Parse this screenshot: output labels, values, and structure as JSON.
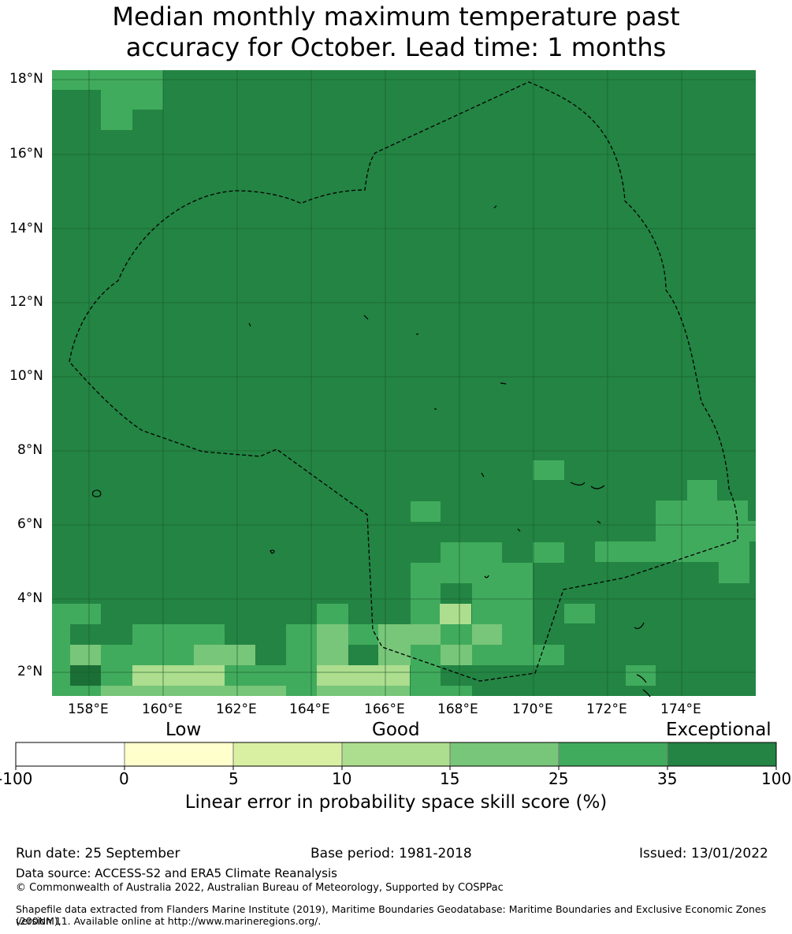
{
  "title": {
    "line1": "Median monthly maximum temperature past",
    "line2": "accuracy for October. Lead time: 1 months"
  },
  "map": {
    "lat_labels": [
      "18°N",
      "16°N",
      "14°N",
      "12°N",
      "10°N",
      "8°N",
      "6°N",
      "4°N",
      "2°N"
    ],
    "lon_labels": [
      "158°E",
      "160°E",
      "162°E",
      "164°E",
      "166°E",
      "168°E",
      "170°E",
      "172°E",
      "174°E"
    ],
    "background_color": "#238443",
    "grid_color": "#1a5a2c"
  },
  "colorbar": {
    "categories": [
      "Low",
      "Good",
      "Exceptional"
    ],
    "ticks": [
      "-100",
      "0",
      "5",
      "10",
      "15",
      "25",
      "35",
      "100"
    ],
    "colors": [
      "#ffffff",
      "#ffffcc",
      "#d9f0a3",
      "#addd8e",
      "#78c679",
      "#41ab5d",
      "#238443"
    ],
    "label": "Linear error in probability space skill score (%)"
  },
  "footer": {
    "run_date": "Run date: 25 September",
    "base_period": "Base period: 1981-2018",
    "issued": "Issued: 13/01/2022",
    "data_source": "Data source: ACCESS-S2 and ERA5 Climate Reanalysis",
    "copyright": "© Commonwealth of Australia 2022, Australian Bureau of Meteorology, Supported by COSPPac",
    "shapefile_line1": "Shapefile data extracted from Flanders Marine Institute (2019), Maritime Boundaries Geodatabase: Maritime Boundaries and Exclusive Economic Zones (200NM),",
    "shapefile_line2": "version 11. Available online at http://www.marineregions.org/."
  }
}
